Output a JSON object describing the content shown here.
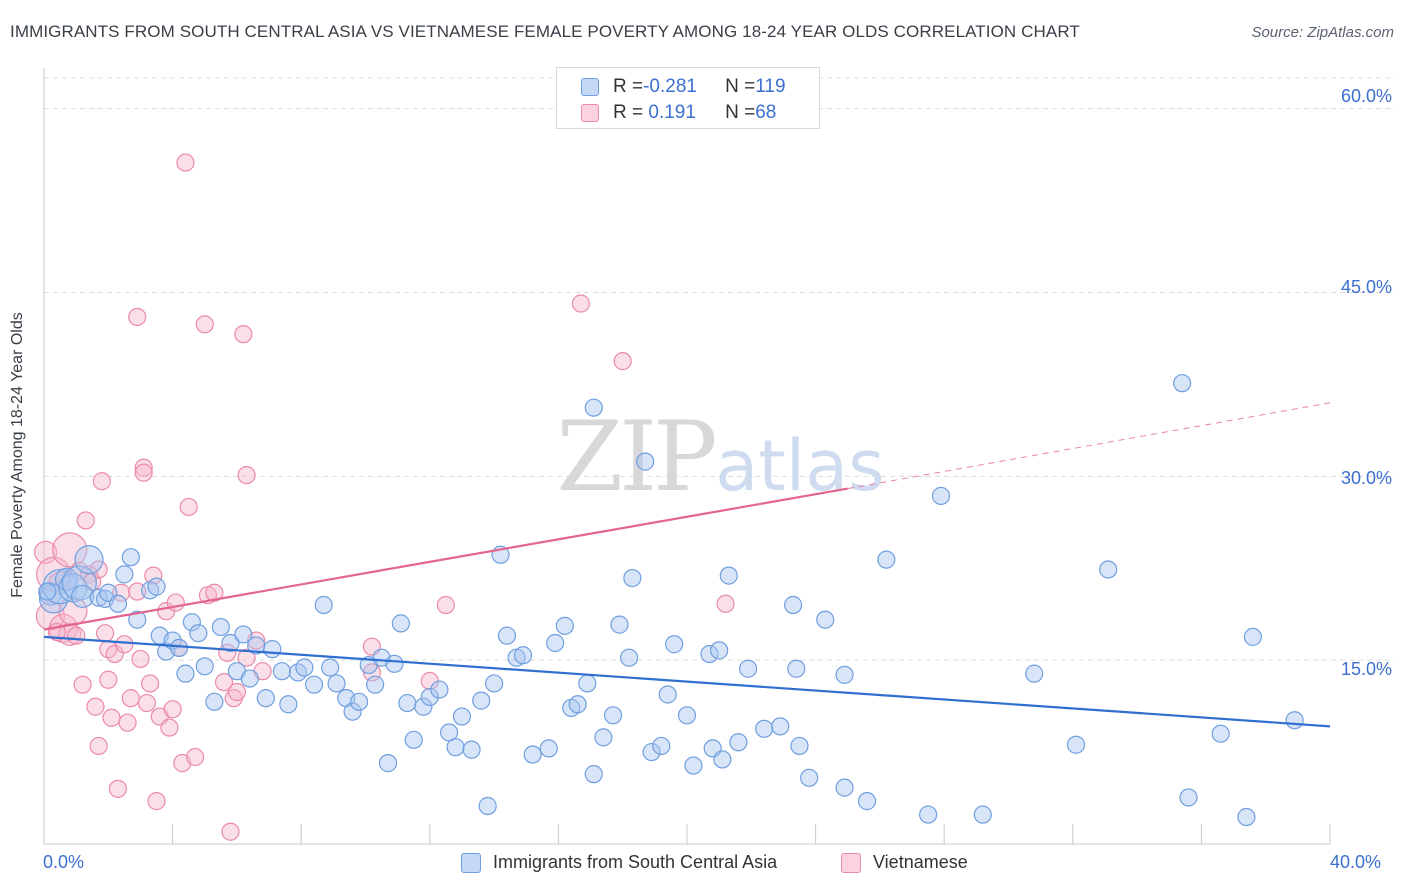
{
  "title": "IMMIGRANTS FROM SOUTH CENTRAL ASIA VS VIETNAMESE FEMALE POVERTY AMONG 18-24 YEAR OLDS CORRELATION CHART",
  "source": "Source: ZipAtlas.com",
  "watermark": "ZIPatlas",
  "legend": {
    "rows": [
      {
        "r_label": "R = ",
        "r_value": "-0.281",
        "n_label": "N = ",
        "n_value": "119",
        "color": "#a9c6f0"
      },
      {
        "r_label": "R = ",
        "r_value": " 0.191",
        "n_label": "N = ",
        "n_value": "68",
        "color": "#f6b8cb"
      }
    ]
  },
  "bottom_legend": [
    "Immigrants from South Central Asia",
    "Vietnamese"
  ],
  "colors": {
    "blue_fill": "#a9c6f0",
    "blue_stroke": "#6f9fe0",
    "blue_line": "#2f6fcf",
    "pink_fill": "#f6b8cb",
    "pink_stroke": "#eb8aa9",
    "pink_line": "#e2668f",
    "axis_text": "#3b6fd0",
    "grid": "#dcdcdc"
  },
  "chart_data": {
    "type": "scatter",
    "title": "IMMIGRANTS FROM SOUTH CENTRAL ASIA VS VIETNAMESE FEMALE POVERTY AMONG 18-24 YEAR OLDS CORRELATION CHART",
    "xlabel": "",
    "ylabel": "Female Poverty Among 18-24 Year Olds",
    "xlim": [
      0,
      40
    ],
    "ylim": [
      0,
      62.5
    ],
    "x_tick_labels": [
      "0.0%",
      "40.0%"
    ],
    "y_ticks": [
      15,
      30,
      45,
      60
    ],
    "y_tick_labels": [
      "15.0%",
      "30.0%",
      "45.0%",
      "60.0%"
    ],
    "grid": true,
    "legend_position": "top-center",
    "series": [
      {
        "name": "Immigrants from South Central Asia",
        "r": -0.281,
        "n": 119,
        "trend": {
          "x0": 0,
          "y0": 16.9,
          "x1": 40,
          "y1": 9.6
        },
        "points": [
          [
            0.2,
            20.4
          ],
          [
            0.3,
            20.0
          ],
          [
            0.5,
            21.0
          ],
          [
            0.7,
            21.6
          ],
          [
            0.9,
            20.9
          ],
          [
            1.1,
            21.3
          ],
          [
            1.2,
            20.2
          ],
          [
            1.4,
            23.2
          ],
          [
            1.7,
            20.1
          ],
          [
            1.9,
            20.0
          ],
          [
            2.0,
            20.5
          ],
          [
            2.3,
            19.6
          ],
          [
            2.5,
            22.0
          ],
          [
            2.7,
            23.4
          ],
          [
            2.9,
            18.3
          ],
          [
            3.3,
            20.7
          ],
          [
            3.5,
            21.0
          ],
          [
            3.6,
            17.0
          ],
          [
            3.8,
            15.7
          ],
          [
            4.0,
            16.6
          ],
          [
            4.2,
            16.0
          ],
          [
            4.4,
            13.9
          ],
          [
            4.6,
            18.1
          ],
          [
            4.8,
            17.2
          ],
          [
            5.0,
            14.5
          ],
          [
            5.3,
            11.6
          ],
          [
            5.5,
            17.7
          ],
          [
            5.8,
            16.4
          ],
          [
            6.0,
            14.1
          ],
          [
            6.2,
            17.1
          ],
          [
            6.4,
            13.5
          ],
          [
            6.6,
            16.2
          ],
          [
            6.9,
            11.9
          ],
          [
            7.1,
            15.9
          ],
          [
            7.4,
            14.1
          ],
          [
            7.6,
            11.4
          ],
          [
            7.9,
            14.0
          ],
          [
            8.1,
            14.4
          ],
          [
            8.4,
            13.0
          ],
          [
            8.7,
            19.5
          ],
          [
            8.9,
            14.4
          ],
          [
            9.1,
            13.1
          ],
          [
            9.4,
            11.9
          ],
          [
            9.6,
            10.8
          ],
          [
            9.8,
            11.6
          ],
          [
            10.1,
            14.6
          ],
          [
            10.3,
            13.0
          ],
          [
            10.5,
            15.2
          ],
          [
            10.7,
            6.6
          ],
          [
            10.9,
            14.7
          ],
          [
            11.1,
            18.0
          ],
          [
            11.3,
            11.5
          ],
          [
            11.5,
            8.5
          ],
          [
            11.8,
            11.2
          ],
          [
            12.0,
            12.0
          ],
          [
            12.3,
            12.6
          ],
          [
            12.6,
            9.1
          ],
          [
            12.8,
            7.9
          ],
          [
            13.0,
            10.4
          ],
          [
            13.3,
            7.7
          ],
          [
            13.6,
            11.7
          ],
          [
            13.8,
            3.1
          ],
          [
            14.0,
            13.1
          ],
          [
            14.2,
            23.6
          ],
          [
            14.4,
            17.0
          ],
          [
            14.7,
            15.2
          ],
          [
            14.9,
            15.4
          ],
          [
            15.2,
            7.3
          ],
          [
            15.7,
            7.8
          ],
          [
            15.9,
            16.4
          ],
          [
            16.2,
            17.8
          ],
          [
            16.4,
            11.1
          ],
          [
            16.6,
            11.4
          ],
          [
            16.9,
            13.1
          ],
          [
            17.1,
            5.7
          ],
          [
            17.4,
            8.7
          ],
          [
            17.7,
            10.5
          ],
          [
            17.9,
            17.9
          ],
          [
            18.2,
            15.2
          ],
          [
            18.3,
            21.7
          ],
          [
            17.1,
            35.6
          ],
          [
            18.7,
            31.2
          ],
          [
            18.9,
            7.5
          ],
          [
            19.2,
            8.0
          ],
          [
            19.4,
            12.2
          ],
          [
            19.6,
            16.3
          ],
          [
            20.0,
            10.5
          ],
          [
            20.2,
            6.4
          ],
          [
            20.7,
            15.5
          ],
          [
            20.8,
            7.8
          ],
          [
            21.0,
            15.8
          ],
          [
            21.1,
            6.9
          ],
          [
            21.3,
            21.9
          ],
          [
            21.6,
            8.3
          ],
          [
            21.9,
            14.3
          ],
          [
            22.4,
            9.4
          ],
          [
            22.9,
            9.6
          ],
          [
            23.3,
            19.5
          ],
          [
            23.4,
            14.3
          ],
          [
            23.5,
            8.0
          ],
          [
            23.8,
            5.4
          ],
          [
            24.3,
            18.3
          ],
          [
            24.9,
            4.6
          ],
          [
            24.9,
            13.8
          ],
          [
            25.6,
            3.5
          ],
          [
            26.2,
            23.2
          ],
          [
            27.5,
            2.4
          ],
          [
            27.9,
            28.4
          ],
          [
            29.2,
            2.4
          ],
          [
            30.8,
            13.9
          ],
          [
            32.1,
            8.1
          ],
          [
            33.1,
            22.4
          ],
          [
            35.4,
            37.6
          ],
          [
            35.6,
            3.8
          ],
          [
            36.6,
            9.0
          ],
          [
            37.4,
            2.2
          ],
          [
            37.6,
            16.9
          ],
          [
            38.9,
            10.1
          ],
          [
            0.1,
            20.6
          ]
        ]
      },
      {
        "name": "Vietnamese",
        "r": 0.191,
        "n": 68,
        "trend": {
          "x0": 0,
          "y0": 17.5,
          "x1": 25,
          "y1": 29.0,
          "dashed_x1": 40,
          "dashed_y1": 36.0
        },
        "points": [
          [
            0.05,
            23.8
          ],
          [
            0.2,
            18.6
          ],
          [
            0.3,
            22.0
          ],
          [
            0.5,
            21.3
          ],
          [
            0.6,
            17.6
          ],
          [
            0.8,
            24.0
          ],
          [
            0.8,
            17.1
          ],
          [
            0.9,
            19.0
          ],
          [
            1.1,
            22.3
          ],
          [
            1.2,
            13.0
          ],
          [
            1.3,
            26.4
          ],
          [
            1.4,
            22.0
          ],
          [
            1.5,
            21.4
          ],
          [
            1.6,
            11.2
          ],
          [
            1.7,
            8.0
          ],
          [
            1.7,
            22.4
          ],
          [
            1.8,
            29.6
          ],
          [
            1.9,
            17.2
          ],
          [
            2.0,
            15.9
          ],
          [
            2.0,
            13.4
          ],
          [
            2.1,
            10.3
          ],
          [
            2.2,
            15.5
          ],
          [
            2.3,
            4.5
          ],
          [
            2.4,
            20.5
          ],
          [
            2.5,
            16.3
          ],
          [
            2.6,
            9.9
          ],
          [
            2.7,
            11.9
          ],
          [
            2.9,
            43.0
          ],
          [
            2.9,
            20.6
          ],
          [
            3.1,
            30.7
          ],
          [
            3.1,
            30.3
          ],
          [
            3.2,
            11.5
          ],
          [
            3.3,
            13.1
          ],
          [
            3.4,
            21.9
          ],
          [
            3.5,
            3.5
          ],
          [
            3.6,
            10.4
          ],
          [
            3.8,
            19.0
          ],
          [
            3.9,
            9.5
          ],
          [
            4.0,
            11.0
          ],
          [
            4.1,
            19.7
          ],
          [
            4.2,
            16.0
          ],
          [
            4.3,
            6.6
          ],
          [
            4.4,
            55.6
          ],
          [
            4.5,
            27.5
          ],
          [
            4.7,
            7.1
          ],
          [
            5.0,
            42.4
          ],
          [
            5.1,
            20.3
          ],
          [
            5.3,
            20.5
          ],
          [
            5.6,
            13.2
          ],
          [
            5.7,
            15.6
          ],
          [
            5.8,
            1.0
          ],
          [
            5.9,
            11.9
          ],
          [
            6.2,
            41.6
          ],
          [
            6.3,
            30.1
          ],
          [
            6.3,
            15.2
          ],
          [
            6.6,
            16.6
          ],
          [
            6.8,
            14.1
          ],
          [
            10.2,
            16.1
          ],
          [
            10.2,
            14.0
          ],
          [
            12.0,
            13.3
          ],
          [
            12.5,
            19.5
          ],
          [
            16.7,
            44.1
          ],
          [
            18.0,
            39.4
          ],
          [
            21.2,
            19.6
          ],
          [
            0.4,
            17.3
          ],
          [
            1.0,
            17.0
          ],
          [
            3.0,
            15.1
          ],
          [
            6.0,
            12.4
          ]
        ]
      }
    ]
  }
}
